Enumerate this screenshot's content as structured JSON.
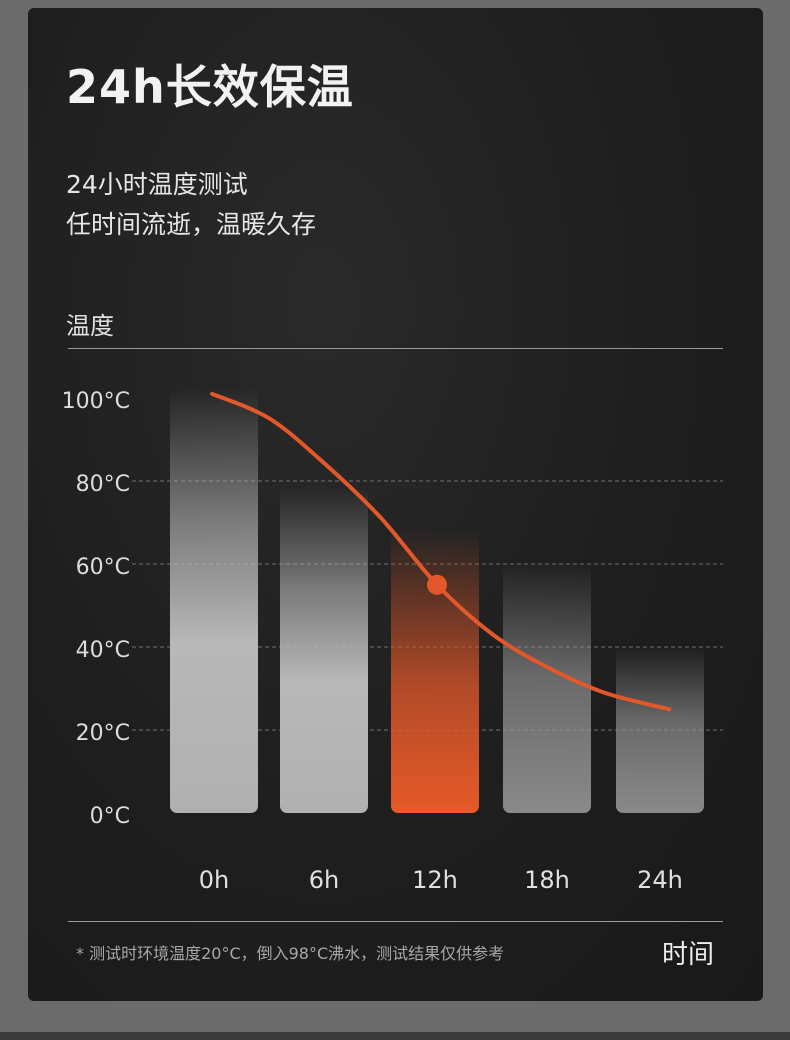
{
  "header": {
    "title": "24h长效保温",
    "subtitle_line1": "24小时温度测试",
    "subtitle_line2": "任时间流逝，温暖久存"
  },
  "footer": {
    "footnote": "* 测试时环境温度20°C，倒入98°C沸水，测试结果仅供参考"
  },
  "colors": {
    "accent": "#e2582a",
    "bar_gray": "#b5b5b5",
    "background": "#1e1e1e"
  },
  "chart_data": {
    "type": "bar",
    "ylabel": "温度",
    "xlabel": "时间",
    "categories": [
      "0h",
      "6h",
      "12h",
      "18h",
      "24h"
    ],
    "values": [
      100,
      76,
      66,
      58,
      38
    ],
    "highlight_index": 2,
    "y_ticks": [
      "0°C",
      "20°C",
      "40°C",
      "60°C",
      "80°C",
      "100°C"
    ],
    "y_tick_values": [
      0,
      20,
      40,
      60,
      80,
      100
    ],
    "ylim": [
      0,
      100
    ],
    "grid": "dashed",
    "curve": {
      "x": [
        -0.1,
        3,
        6,
        9,
        12,
        15,
        18,
        21,
        24.5
      ],
      "y": [
        101,
        95,
        84,
        71,
        55,
        43,
        35,
        29,
        25
      ]
    },
    "marker": {
      "x": 12,
      "y": 55
    }
  }
}
